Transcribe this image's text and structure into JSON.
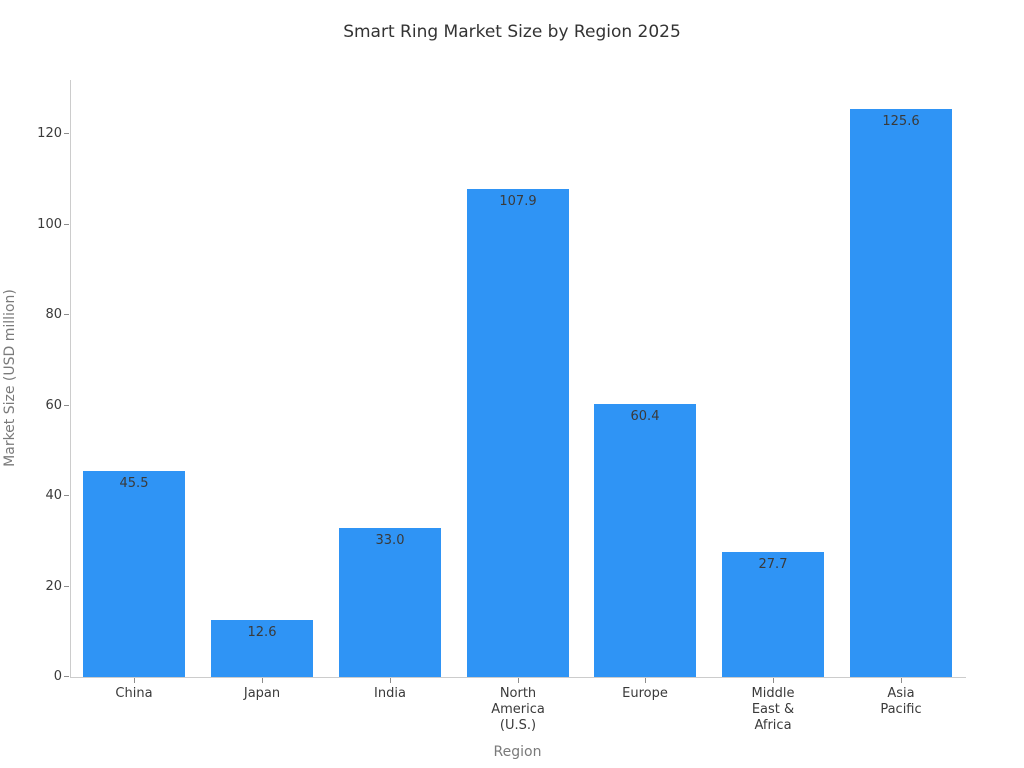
{
  "chart_data": {
    "type": "bar",
    "title": "Smart Ring Market Size by Region 2025",
    "xlabel": "Region",
    "ylabel": "Market Size (USD million)",
    "categories": [
      "China",
      "Japan",
      "India",
      "North\nAmerica\n(U.S.)",
      "Europe",
      "Middle\nEast &\nAfrica",
      "Asia\nPacific"
    ],
    "values": [
      45.5,
      12.6,
      33.0,
      107.9,
      60.4,
      27.7,
      125.6
    ],
    "value_labels": [
      "45.5",
      "12.6",
      "33.0",
      "107.9",
      "60.4",
      "27.7",
      "125.6"
    ],
    "yticks": [
      0,
      20,
      40,
      60,
      80,
      100,
      120
    ],
    "ylim": [
      0,
      132
    ],
    "grid": false,
    "legend": "none",
    "colors": {
      "bar": "#2F94F5",
      "title_text": "#333333",
      "tick_text": "#3a3a3a",
      "value_label_text": "#3a3a3a",
      "axis_label_text": "#7a7a7a",
      "spine": "#cccccc",
      "tick_mark": "#8c8c8c",
      "background": "#ffffff"
    }
  }
}
